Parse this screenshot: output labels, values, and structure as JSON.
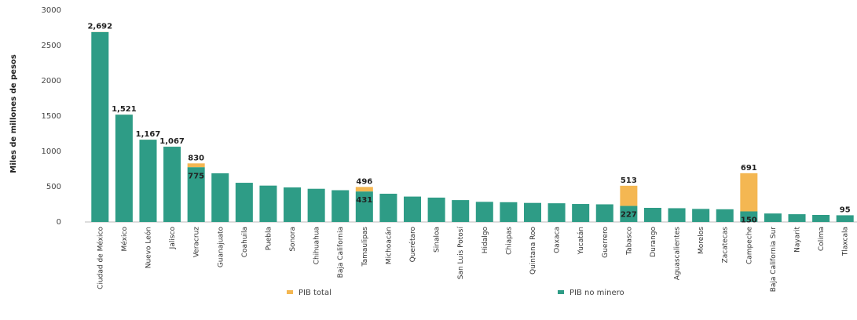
{
  "chart_data": {
    "type": "bar",
    "title": "",
    "xlabel": "",
    "ylabel": "Miles de millones de pesos",
    "ylim": [
      0,
      3000
    ],
    "yticks": [
      0,
      500,
      1000,
      1500,
      2000,
      2500,
      3000
    ],
    "ytick_labels": [
      "0",
      "500",
      "1000",
      "1500",
      "2000",
      "2500",
      "3000"
    ],
    "grid": false,
    "legend_position": "bottom",
    "categories": [
      "Ciudad de México",
      "México",
      "Nuevo León",
      "Jalisco",
      "Veracruz",
      "Guanajuato",
      "Coahuila",
      "Puebla",
      "Sonora",
      "Chihuahua",
      "Baja California",
      "Tamaulipas",
      "Michoacán",
      "Querétaro",
      "Sinaloa",
      "San Luis Potosí",
      "Hidalgo",
      "Chiapas",
      "Quintana Roo",
      "Oaxaca",
      "Yucatán",
      "Guerrero",
      "Tabasco",
      "Durango",
      "Aguascalientes",
      "Morelos",
      "Zacatecas",
      "Campeche",
      "Baja California Sur",
      "Nayarit",
      "Colima",
      "Tlaxcala"
    ],
    "series": [
      {
        "name": "PIB total",
        "color": "#F4B752",
        "values": [
          2692,
          1521,
          1167,
          1067,
          830,
          690,
          555,
          515,
          490,
          470,
          450,
          496,
          400,
          360,
          345,
          310,
          285,
          280,
          270,
          265,
          255,
          250,
          513,
          200,
          195,
          185,
          180,
          691,
          120,
          110,
          100,
          95
        ]
      },
      {
        "name": "PIB no minero",
        "color": "#2E9C86",
        "values": [
          2690,
          1520,
          1165,
          1066,
          775,
          690,
          555,
          515,
          490,
          470,
          450,
          431,
          400,
          360,
          345,
          310,
          285,
          280,
          270,
          265,
          255,
          250,
          227,
          200,
          195,
          185,
          180,
          150,
          120,
          110,
          100,
          95
        ]
      }
    ],
    "data_labels": [
      {
        "index": 0,
        "series": "PIB total",
        "text": "2,692"
      },
      {
        "index": 1,
        "series": "PIB total",
        "text": "1,521"
      },
      {
        "index": 2,
        "series": "PIB total",
        "text": "1,167"
      },
      {
        "index": 3,
        "series": "PIB total",
        "text": "1,067"
      },
      {
        "index": 4,
        "series": "PIB total",
        "text": "830"
      },
      {
        "index": 4,
        "series": "PIB no minero",
        "text": "775"
      },
      {
        "index": 11,
        "series": "PIB total",
        "text": "496"
      },
      {
        "index": 11,
        "series": "PIB no minero",
        "text": "431"
      },
      {
        "index": 22,
        "series": "PIB total",
        "text": "513"
      },
      {
        "index": 22,
        "series": "PIB no minero",
        "text": "227"
      },
      {
        "index": 27,
        "series": "PIB total",
        "text": "691"
      },
      {
        "index": 27,
        "series": "PIB no minero",
        "text": "150"
      },
      {
        "index": 31,
        "series": "PIB total",
        "text": "95"
      }
    ]
  }
}
